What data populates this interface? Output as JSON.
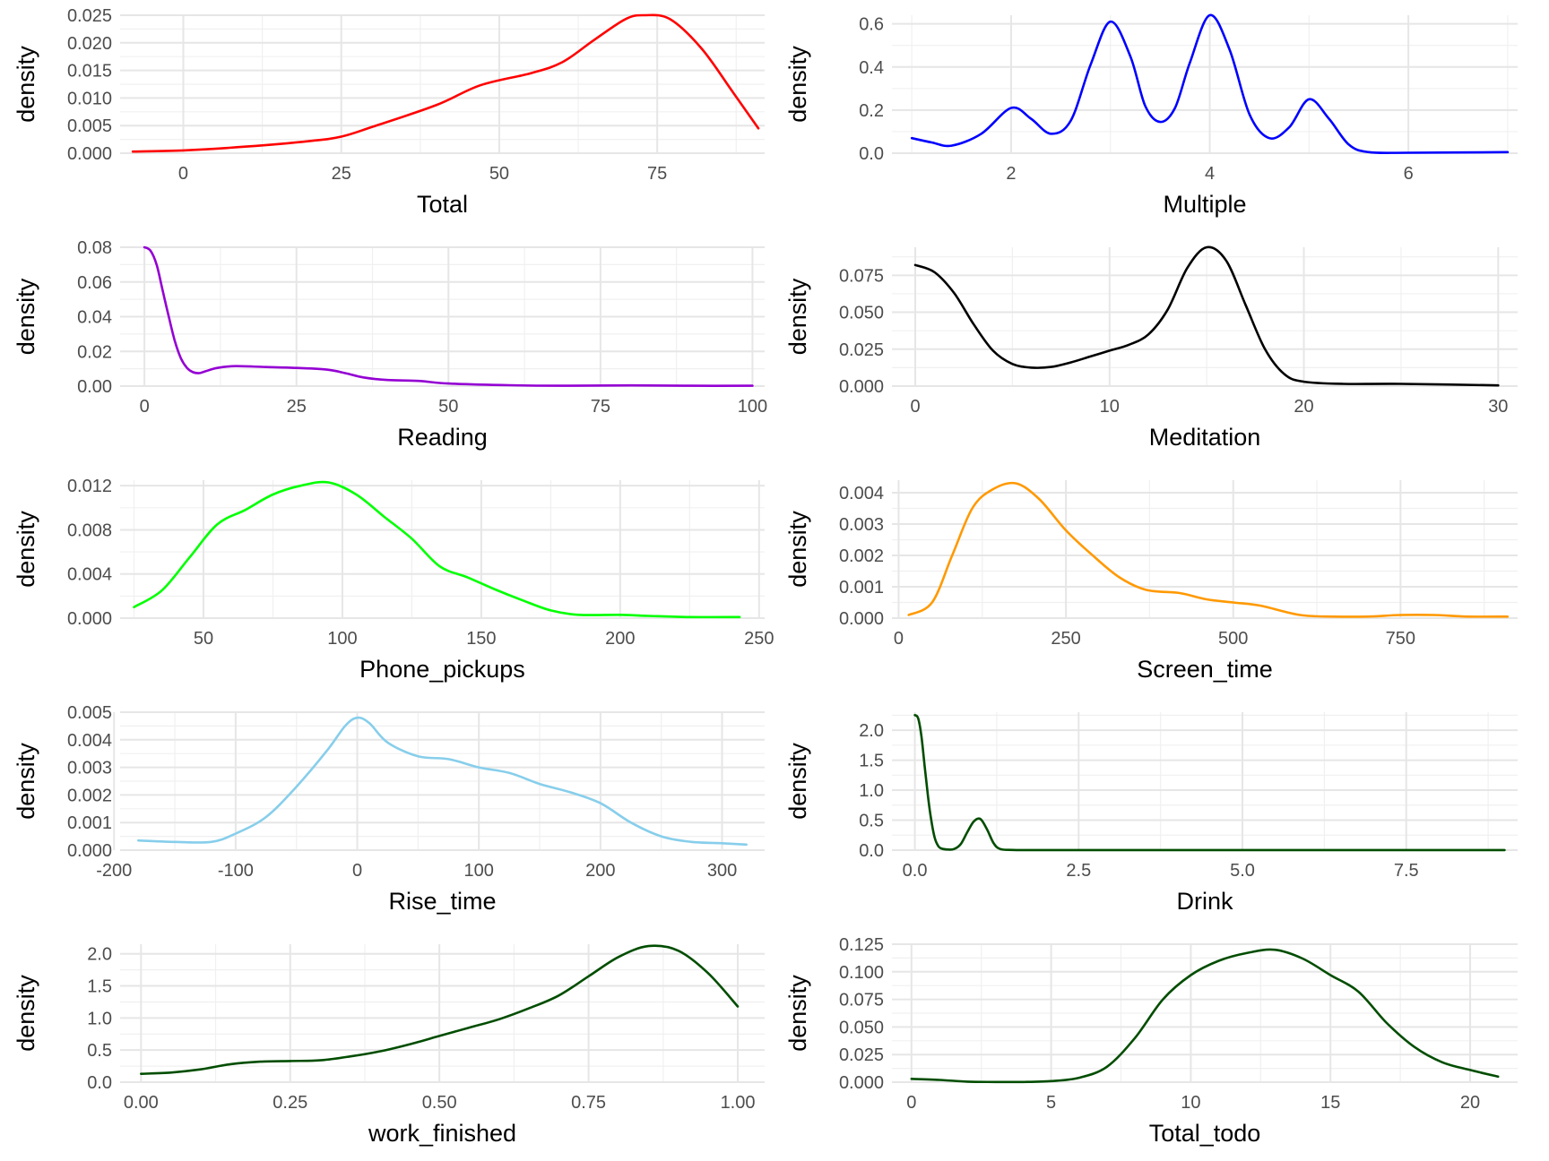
{
  "chart_data": [
    {
      "type": "line",
      "xlabel": "Total",
      "ylabel": "density",
      "color": "#ff0000",
      "xlim": [
        -10,
        92
      ],
      "ylim": [
        0,
        0.025
      ],
      "xticks": [
        0,
        25,
        50,
        75
      ],
      "xtick_labels": [
        "0",
        "25",
        "50",
        "75"
      ],
      "yticks": [
        0,
        0.005,
        0.01,
        0.015,
        0.02,
        0.025
      ],
      "ytick_labels": [
        "0.000",
        "0.005",
        "0.010",
        "0.015",
        "0.020",
        "0.025"
      ],
      "x": [
        -8,
        0,
        10,
        20,
        25,
        30,
        40,
        47,
        55,
        60,
        65,
        70,
        73,
        77,
        82,
        87,
        91
      ],
      "y": [
        0.0003,
        0.0005,
        0.0012,
        0.0022,
        0.003,
        0.0048,
        0.0087,
        0.0123,
        0.0145,
        0.0165,
        0.0205,
        0.0243,
        0.025,
        0.0243,
        0.019,
        0.011,
        0.0045
      ]
    },
    {
      "type": "line",
      "xlabel": "Multiple",
      "ylabel": "density",
      "color": "#0000ff",
      "xlim": [
        0.8,
        7.1
      ],
      "ylim": [
        0,
        0.64
      ],
      "xticks": [
        2,
        4,
        6
      ],
      "xtick_labels": [
        "2",
        "4",
        "6"
      ],
      "yticks": [
        0,
        0.2,
        0.4,
        0.6
      ],
      "ytick_labels": [
        "0.0",
        "0.2",
        "0.4",
        "0.6"
      ],
      "x": [
        1.0,
        1.2,
        1.4,
        1.7,
        2.0,
        2.2,
        2.4,
        2.6,
        2.8,
        3.0,
        3.2,
        3.35,
        3.5,
        3.65,
        3.8,
        4.0,
        4.2,
        4.4,
        4.6,
        4.8,
        5.0,
        5.2,
        5.4,
        5.6,
        6.0,
        7.0
      ],
      "y": [
        0.07,
        0.05,
        0.035,
        0.09,
        0.21,
        0.16,
        0.09,
        0.15,
        0.41,
        0.61,
        0.45,
        0.22,
        0.145,
        0.21,
        0.42,
        0.64,
        0.48,
        0.18,
        0.07,
        0.12,
        0.25,
        0.16,
        0.04,
        0.005,
        0.002,
        0.005
      ]
    },
    {
      "type": "line",
      "xlabel": "Reading",
      "ylabel": "density",
      "color": "#9400d3",
      "xlim": [
        -4,
        102
      ],
      "ylim": [
        0,
        0.08
      ],
      "xticks": [
        0,
        25,
        50,
        75,
        100
      ],
      "xtick_labels": [
        "0",
        "25",
        "50",
        "75",
        "100"
      ],
      "yticks": [
        0,
        0.02,
        0.04,
        0.06,
        0.08
      ],
      "ytick_labels": [
        "0.00",
        "0.02",
        "0.04",
        "0.06",
        "0.08"
      ],
      "x": [
        0,
        1,
        2,
        3,
        4,
        5,
        6,
        7,
        8,
        9,
        10,
        12,
        15,
        20,
        25,
        30,
        33,
        36,
        40,
        45,
        50,
        60,
        70,
        80,
        90,
        100
      ],
      "y": [
        0.08,
        0.078,
        0.07,
        0.055,
        0.04,
        0.026,
        0.016,
        0.0105,
        0.008,
        0.0075,
        0.0085,
        0.0105,
        0.0115,
        0.011,
        0.0105,
        0.0095,
        0.0075,
        0.005,
        0.0035,
        0.003,
        0.0015,
        0.0005,
        0.0002,
        0.0004,
        0.0002,
        0.0002
      ]
    },
    {
      "type": "line",
      "xlabel": "Meditation",
      "ylabel": "density",
      "color": "#000000",
      "xlim": [
        -1.2,
        31
      ],
      "ylim": [
        0,
        0.094
      ],
      "xticks": [
        0,
        10,
        20,
        30
      ],
      "xtick_labels": [
        "0",
        "10",
        "20",
        "30"
      ],
      "yticks": [
        0,
        0.025,
        0.05,
        0.075
      ],
      "ytick_labels": [
        "0.000",
        "0.025",
        "0.050",
        "0.075"
      ],
      "x": [
        0,
        1,
        2,
        3,
        4,
        5,
        6,
        7,
        8,
        9,
        10,
        11,
        12,
        13,
        14,
        15,
        16,
        17,
        18,
        19,
        20,
        22,
        25,
        30
      ],
      "y": [
        0.082,
        0.077,
        0.063,
        0.042,
        0.024,
        0.015,
        0.0125,
        0.013,
        0.016,
        0.02,
        0.024,
        0.028,
        0.035,
        0.052,
        0.08,
        0.094,
        0.085,
        0.055,
        0.025,
        0.008,
        0.003,
        0.0015,
        0.0015,
        0.0005
      ]
    },
    {
      "type": "line",
      "xlabel": "Phone_pickups",
      "ylabel": "density",
      "color": "#00ff00",
      "xlim": [
        20,
        252
      ],
      "ylim": [
        0,
        0.0125
      ],
      "xticks": [
        50,
        100,
        150,
        200,
        250
      ],
      "xtick_labels": [
        "50",
        "100",
        "150",
        "200",
        "250"
      ],
      "yticks": [
        0,
        0.004,
        0.008,
        0.012
      ],
      "ytick_labels": [
        "0.000",
        "0.004",
        "0.008",
        "0.012"
      ],
      "x": [
        25,
        35,
        45,
        55,
        65,
        75,
        85,
        95,
        105,
        115,
        125,
        135,
        145,
        155,
        165,
        175,
        185,
        200,
        210,
        225,
        243
      ],
      "y": [
        0.001,
        0.0025,
        0.0055,
        0.0085,
        0.0098,
        0.0112,
        0.012,
        0.0123,
        0.0112,
        0.0092,
        0.0072,
        0.0047,
        0.0037,
        0.0026,
        0.0016,
        0.0007,
        0.0003,
        0.0003,
        0.0002,
        0.0001,
        0.0001
      ]
    },
    {
      "type": "line",
      "xlabel": "Screen_time",
      "ylabel": "density",
      "color": "#ff9900",
      "xlim": [
        -10,
        925
      ],
      "ylim": [
        0,
        0.0044
      ],
      "xticks": [
        0,
        250,
        500,
        750
      ],
      "xtick_labels": [
        "0",
        "250",
        "500",
        "750"
      ],
      "yticks": [
        0,
        0.001,
        0.002,
        0.003,
        0.004
      ],
      "ytick_labels": [
        "0.000",
        "0.001",
        "0.002",
        "0.003",
        "0.004"
      ],
      "x": [
        15,
        50,
        80,
        110,
        140,
        175,
        210,
        250,
        290,
        330,
        370,
        420,
        460,
        500,
        540,
        600,
        650,
        700,
        750,
        800,
        850,
        910
      ],
      "y": [
        0.0001,
        0.0005,
        0.002,
        0.0035,
        0.0041,
        0.0043,
        0.0038,
        0.0028,
        0.002,
        0.0013,
        0.0009,
        0.0008,
        0.0006,
        0.0005,
        0.0004,
        0.0001,
        5e-05,
        5e-05,
        0.0001,
        0.0001,
        5e-05,
        5e-05
      ]
    },
    {
      "type": "line",
      "xlabel": "Rise_time",
      "ylabel": "density",
      "color": "#87ceeb",
      "xlim": [
        -195,
        335
      ],
      "ylim": [
        0,
        0.005
      ],
      "xticks": [
        -200,
        -100,
        0,
        100,
        200,
        300
      ],
      "xtick_labels": [
        "-200",
        "-100",
        "0",
        "100",
        "200",
        "300"
      ],
      "yticks": [
        0,
        0.001,
        0.002,
        0.003,
        0.004,
        0.005
      ],
      "ytick_labels": [
        "0.000",
        "0.001",
        "0.002",
        "0.003",
        "0.004",
        "0.005"
      ],
      "x": [
        -180,
        -150,
        -120,
        -100,
        -75,
        -50,
        -25,
        -10,
        0,
        10,
        25,
        50,
        75,
        100,
        125,
        150,
        175,
        200,
        225,
        250,
        275,
        300,
        320
      ],
      "y": [
        0.00035,
        0.0003,
        0.0003,
        0.0006,
        0.0012,
        0.0023,
        0.0036,
        0.0045,
        0.0048,
        0.0046,
        0.0039,
        0.0034,
        0.0033,
        0.003,
        0.0028,
        0.0024,
        0.0021,
        0.0017,
        0.001,
        0.0005,
        0.0003,
        0.00025,
        0.0002
      ]
    },
    {
      "type": "line",
      "xlabel": "Drink",
      "ylabel": "density",
      "color": "#004d00",
      "xlim": [
        -0.35,
        9.2
      ],
      "ylim": [
        0,
        2.3
      ],
      "xticks": [
        0,
        2.5,
        5,
        7.5
      ],
      "xtick_labels": [
        "0.0",
        "2.5",
        "5.0",
        "7.5"
      ],
      "yticks": [
        0,
        0.5,
        1,
        1.5,
        2
      ],
      "ytick_labels": [
        "0.0",
        "0.5",
        "1.0",
        "1.5",
        "2.0"
      ],
      "x": [
        0,
        0.05,
        0.1,
        0.15,
        0.2,
        0.25,
        0.3,
        0.35,
        0.4,
        0.5,
        0.6,
        0.7,
        0.8,
        0.9,
        1.0,
        1.1,
        1.2,
        1.3,
        1.5,
        2,
        5,
        9
      ],
      "y": [
        2.25,
        2.2,
        1.9,
        1.4,
        0.9,
        0.5,
        0.22,
        0.08,
        0.03,
        0.01,
        0.02,
        0.1,
        0.3,
        0.48,
        0.52,
        0.35,
        0.12,
        0.02,
        0.003,
        0.002,
        0.002,
        0.002
      ]
    },
    {
      "type": "line",
      "xlabel": "work_finished",
      "ylabel": "density",
      "color": "#004d00",
      "xlim": [
        -0.035,
        1.045
      ],
      "ylim": [
        0,
        2.15
      ],
      "xticks": [
        0,
        0.25,
        0.5,
        0.75,
        1
      ],
      "xtick_labels": [
        "0.00",
        "0.25",
        "0.50",
        "0.75",
        "1.00"
      ],
      "yticks": [
        0,
        0.5,
        1,
        1.5,
        2
      ],
      "ytick_labels": [
        "0.0",
        "0.5",
        "1.0",
        "1.5",
        "2.0"
      ],
      "x": [
        0,
        0.05,
        0.1,
        0.15,
        0.2,
        0.25,
        0.3,
        0.35,
        0.4,
        0.45,
        0.5,
        0.55,
        0.6,
        0.65,
        0.7,
        0.75,
        0.8,
        0.85,
        0.9,
        0.95,
        1.0
      ],
      "y": [
        0.13,
        0.15,
        0.2,
        0.28,
        0.32,
        0.33,
        0.34,
        0.4,
        0.48,
        0.59,
        0.72,
        0.85,
        0.98,
        1.15,
        1.35,
        1.65,
        1.95,
        2.12,
        2.05,
        1.7,
        1.18
      ]
    },
    {
      "type": "line",
      "xlabel": "Total_todo",
      "ylabel": "density",
      "color": "#004d00",
      "xlim": [
        -0.7,
        21.7
      ],
      "ylim": [
        0,
        0.125
      ],
      "xticks": [
        0,
        5,
        10,
        15,
        20
      ],
      "xtick_labels": [
        "0",
        "5",
        "10",
        "15",
        "20"
      ],
      "yticks": [
        0,
        0.025,
        0.05,
        0.075,
        0.1,
        0.125
      ],
      "ytick_labels": [
        "0.000",
        "0.025",
        "0.050",
        "0.075",
        "0.100",
        "0.125"
      ],
      "x": [
        0,
        1,
        2,
        3,
        4,
        5,
        6,
        7,
        8,
        9,
        10,
        11,
        12,
        13,
        14,
        15,
        16,
        17,
        18,
        19,
        20,
        21
      ],
      "y": [
        0.003,
        0.002,
        0.0005,
        0.0002,
        0.0002,
        0.001,
        0.004,
        0.014,
        0.04,
        0.075,
        0.097,
        0.11,
        0.117,
        0.12,
        0.112,
        0.097,
        0.082,
        0.054,
        0.032,
        0.018,
        0.011,
        0.005
      ]
    }
  ]
}
